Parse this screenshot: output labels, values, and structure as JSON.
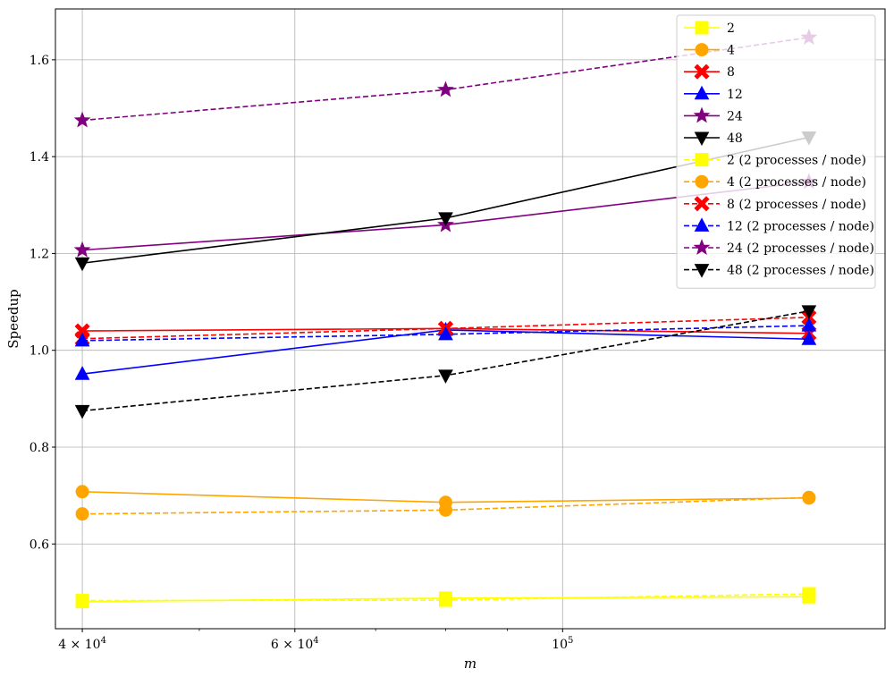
{
  "chart_data": {
    "type": "line",
    "title": "",
    "xlabel": "m",
    "ylabel": "Speedup",
    "xscale": "log",
    "xlim": [
      38000,
      185000
    ],
    "ylim": [
      0.425,
      1.705
    ],
    "grid": true,
    "legend_position": "top-right",
    "x": [
      40000,
      80000,
      160000
    ],
    "x_ticks": [
      {
        "value": 40000,
        "label": "4 × 10",
        "exp": "4"
      },
      {
        "value": 60000,
        "label": "6 × 10",
        "exp": "4"
      },
      {
        "value": 100000,
        "label": "10",
        "exp": "5"
      }
    ],
    "x_minor_ticks": [
      50000,
      70000,
      80000,
      90000
    ],
    "y_ticks": [
      0.6,
      0.8,
      1.0,
      1.2,
      1.4,
      1.6
    ],
    "y_tick_labels": [
      "0.6",
      "0.8",
      "1.0",
      "1.2",
      "1.4",
      "1.6"
    ],
    "series": [
      {
        "name": "2",
        "values": [
          0.481,
          0.488,
          0.491
        ],
        "color": "#ffff00",
        "marker": "square",
        "dashed": false
      },
      {
        "name": "4",
        "values": [
          0.708,
          0.686,
          0.695
        ],
        "color": "#ffa500",
        "marker": "circle",
        "dashed": false
      },
      {
        "name": "8",
        "values": [
          1.04,
          1.045,
          1.035
        ],
        "color": "#ff0000",
        "marker": "x",
        "dashed": false
      },
      {
        "name": "12",
        "values": [
          0.951,
          1.042,
          1.023
        ],
        "color": "#0000ff",
        "marker": "triangle-up",
        "dashed": false
      },
      {
        "name": "24",
        "values": [
          1.207,
          1.259,
          1.348
        ],
        "color": "#800080",
        "marker": "star",
        "dashed": false
      },
      {
        "name": "48",
        "values": [
          1.18,
          1.273,
          1.44
        ],
        "color": "#000000",
        "marker": "triangle-down",
        "dashed": false
      },
      {
        "name": "2 (2 processes / node)",
        "values": [
          0.483,
          0.484,
          0.497
        ],
        "color": "#ffff00",
        "marker": "square",
        "dashed": true
      },
      {
        "name": "4 (2 processes / node)",
        "values": [
          0.662,
          0.67,
          0.696
        ],
        "color": "#ffa500",
        "marker": "circle",
        "dashed": true
      },
      {
        "name": "8 (2 processes / node)",
        "values": [
          1.024,
          1.045,
          1.068
        ],
        "color": "#ff0000",
        "marker": "x",
        "dashed": true
      },
      {
        "name": "12 (2 processes / node)",
        "values": [
          1.02,
          1.033,
          1.051
        ],
        "color": "#0000ff",
        "marker": "triangle-up",
        "dashed": true
      },
      {
        "name": "24 (2 processes / node)",
        "values": [
          1.475,
          1.538,
          1.646
        ],
        "color": "#800080",
        "marker": "star",
        "dashed": true
      },
      {
        "name": "48 (2 processes / node)",
        "values": [
          0.875,
          0.948,
          1.081
        ],
        "color": "#000000",
        "marker": "triangle-down",
        "dashed": true
      }
    ]
  }
}
